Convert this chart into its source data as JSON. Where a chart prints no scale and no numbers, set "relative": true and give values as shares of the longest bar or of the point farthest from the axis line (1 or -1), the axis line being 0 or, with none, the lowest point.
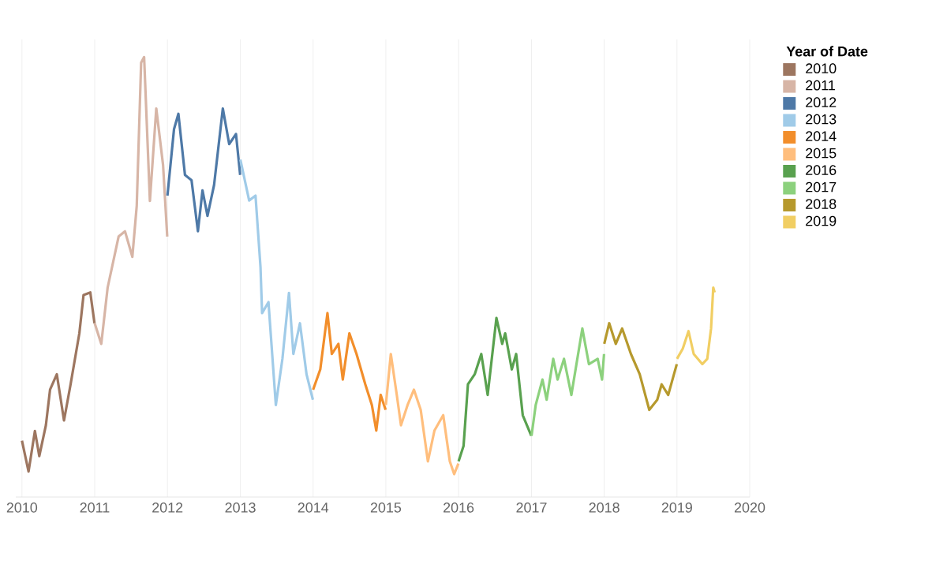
{
  "chart_data": {
    "type": "line",
    "relative": true,
    "legend_title": "Year of Date",
    "legend": "right",
    "grid": "x",
    "xlim": [
      "2009-12",
      "2020"
    ],
    "xticks": [
      "2010",
      "2011",
      "2012",
      "2013",
      "2014",
      "2015",
      "2016",
      "2017",
      "2018",
      "2019",
      "2020"
    ],
    "series": [
      {
        "name": "2010",
        "color": "#9d7660",
        "x": [
          "2010-01-01",
          "2010-02-03",
          "2010-03-07",
          "2010-03-29",
          "2010-05-01",
          "2010-05-22",
          "2010-06-25",
          "2010-07-31",
          "2010-09-02",
          "2010-10-16",
          "2010-11-06",
          "2010-12-10",
          "2010-12-31"
        ],
        "values": [
          0.128,
          0.058,
          0.15,
          0.093,
          0.163,
          0.244,
          0.279,
          0.174,
          0.256,
          0.372,
          0.459,
          0.465,
          0.395
        ]
      },
      {
        "name": "2011",
        "color": "#d7b5a6",
        "x": [
          "2011-01-01",
          "2011-02-03",
          "2011-03-07",
          "2011-05-01",
          "2011-06-02",
          "2011-07-09",
          "2011-07-31",
          "2011-08-22",
          "2011-09-06",
          "2011-10-05",
          "2011-11-06",
          "2011-12-10",
          "2011-12-31"
        ],
        "values": [
          0.395,
          0.348,
          0.476,
          0.592,
          0.604,
          0.546,
          0.662,
          0.987,
          1.0,
          0.673,
          0.883,
          0.755,
          0.592
        ]
      },
      {
        "name": "2012",
        "color": "#4e79a7",
        "x": [
          "2012-01-01",
          "2012-02-03",
          "2012-02-25",
          "2012-03-29",
          "2012-05-01",
          "2012-06-02",
          "2012-06-25",
          "2012-07-20",
          "2012-08-22",
          "2012-10-05",
          "2012-11-06",
          "2012-12-10",
          "2012-12-31"
        ],
        "values": [
          0.685,
          0.836,
          0.871,
          0.732,
          0.72,
          0.604,
          0.697,
          0.639,
          0.709,
          0.883,
          0.802,
          0.825,
          0.732
        ]
      },
      {
        "name": "2013",
        "color": "#a0cbe8",
        "x": [
          "2013-01-01",
          "2013-02-14",
          "2013-03-18",
          "2013-04-12",
          "2013-04-20",
          "2013-05-22",
          "2013-06-28",
          "2013-07-31",
          "2013-09-02",
          "2013-09-24",
          "2013-10-27",
          "2013-11-29",
          "2013-12-31"
        ],
        "values": [
          0.767,
          0.674,
          0.685,
          0.523,
          0.418,
          0.443,
          0.209,
          0.314,
          0.464,
          0.325,
          0.395,
          0.279,
          0.221
        ]
      },
      {
        "name": "2014",
        "color": "#f28e2b",
        "x": [
          "2014-01-01",
          "2014-02-06",
          "2014-03-14",
          "2014-04-05",
          "2014-05-08",
          "2014-05-30",
          "2014-07-02",
          "2014-08-07",
          "2014-09-20",
          "2014-10-23",
          "2014-11-14",
          "2014-12-06",
          "2014-12-31"
        ],
        "values": [
          0.244,
          0.29,
          0.418,
          0.325,
          0.348,
          0.267,
          0.372,
          0.325,
          0.256,
          0.209,
          0.151,
          0.232,
          0.198
        ]
      },
      {
        "name": "2015",
        "color": "#ffbe7d",
        "x": [
          "2015-01-01",
          "2015-01-26",
          "2015-02-25",
          "2015-03-18",
          "2015-04-20",
          "2015-05-22",
          "2015-06-25",
          "2015-07-31",
          "2015-09-02",
          "2015-10-16",
          "2015-11-18",
          "2015-12-10",
          "2015-12-31"
        ],
        "values": [
          0.209,
          0.325,
          0.232,
          0.163,
          0.209,
          0.244,
          0.198,
          0.081,
          0.151,
          0.186,
          0.081,
          0.052,
          0.076
        ]
      },
      {
        "name": "2016",
        "color": "#59a14f",
        "x": [
          "2016-01-01",
          "2016-01-26",
          "2016-02-17",
          "2016-03-22",
          "2016-04-24",
          "2016-05-26",
          "2016-07-09",
          "2016-08-07",
          "2016-08-22",
          "2016-09-24",
          "2016-10-16",
          "2016-11-18",
          "2016-12-31"
        ],
        "values": [
          0.081,
          0.116,
          0.256,
          0.279,
          0.325,
          0.232,
          0.407,
          0.348,
          0.372,
          0.29,
          0.325,
          0.186,
          0.139
        ]
      },
      {
        "name": "2017",
        "color": "#8cd17d",
        "x": [
          "2017-01-01",
          "2017-01-22",
          "2017-02-25",
          "2017-03-18",
          "2017-04-20",
          "2017-05-12",
          "2017-06-13",
          "2017-07-20",
          "2017-09-13",
          "2017-10-16",
          "2017-11-29",
          "2017-12-21",
          "2017-12-31"
        ],
        "values": [
          0.139,
          0.209,
          0.267,
          0.221,
          0.314,
          0.267,
          0.314,
          0.232,
          0.383,
          0.302,
          0.314,
          0.267,
          0.325
        ]
      },
      {
        "name": "2018",
        "color": "#b6992d",
        "x": [
          "2018-01-01",
          "2018-01-26",
          "2018-02-28",
          "2018-04-01",
          "2018-05-15",
          "2018-06-28",
          "2018-08-15",
          "2018-09-24",
          "2018-10-16",
          "2018-11-18",
          "2018-12-31"
        ],
        "values": [
          0.348,
          0.395,
          0.348,
          0.383,
          0.325,
          0.279,
          0.198,
          0.221,
          0.256,
          0.232,
          0.302
        ]
      },
      {
        "name": "2019",
        "color": "#f1ce63",
        "x": [
          "2019-01-01",
          "2019-01-30",
          "2019-02-28",
          "2019-03-26",
          "2019-05-08",
          "2019-06-02",
          "2019-06-21",
          "2019-07-02",
          "2019-07-09"
        ],
        "values": [
          0.314,
          0.337,
          0.377,
          0.325,
          0.302,
          0.314,
          0.383,
          0.476,
          0.465
        ]
      }
    ]
  }
}
